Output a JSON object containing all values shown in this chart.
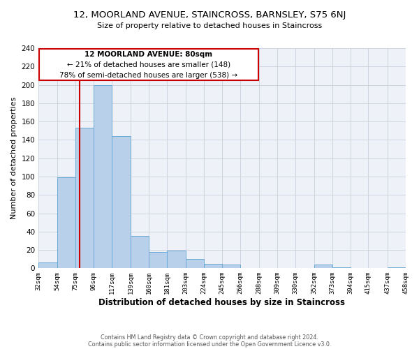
{
  "title": "12, MOORLAND AVENUE, STAINCROSS, BARNSLEY, S75 6NJ",
  "subtitle": "Size of property relative to detached houses in Staincross",
  "xlabel": "Distribution of detached houses by size in Staincross",
  "ylabel": "Number of detached properties",
  "bar_color": "#b8d0ea",
  "bar_edge_color": "#6aaad4",
  "background_color": "#eef2f8",
  "grid_color": "#c8d0dc",
  "annotation_box_edge": "#cc0000",
  "annotation_line_color": "#cc0000",
  "annotation_text": "12 MOORLAND AVENUE: 80sqm",
  "annotation_line1": "← 21% of detached houses are smaller (148)",
  "annotation_line2": "78% of semi-detached houses are larger (538) →",
  "property_size": 80,
  "bin_edges": [
    32,
    54,
    75,
    96,
    117,
    139,
    160,
    181,
    203,
    224,
    245,
    266,
    288,
    309,
    330,
    352,
    373,
    394,
    415,
    437,
    458
  ],
  "bin_counts": [
    6,
    99,
    153,
    200,
    144,
    35,
    18,
    19,
    10,
    5,
    4,
    0,
    0,
    0,
    0,
    4,
    1,
    0,
    0,
    1
  ],
  "ylim": [
    0,
    240
  ],
  "yticks": [
    0,
    20,
    40,
    60,
    80,
    100,
    120,
    140,
    160,
    180,
    200,
    220,
    240
  ],
  "footer_line1": "Contains HM Land Registry data © Crown copyright and database right 2024.",
  "footer_line2": "Contains public sector information licensed under the Open Government Licence v3.0."
}
